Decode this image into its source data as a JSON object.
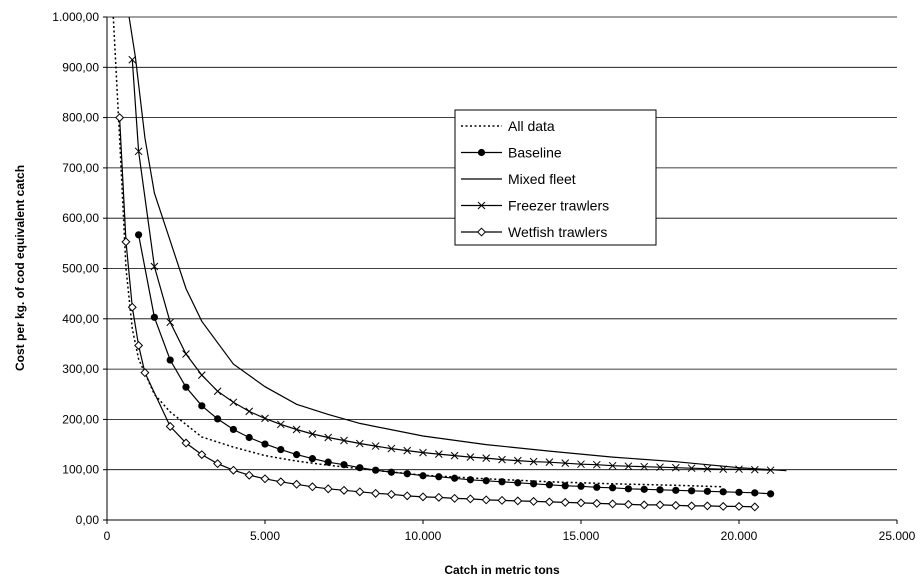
{
  "chart_data": {
    "type": "line",
    "title": "",
    "xlabel": "Catch in metric tons",
    "ylabel": "Cost per kg. of cod equivalent catch",
    "xlim": [
      0,
      25000
    ],
    "ylim": [
      0,
      1000
    ],
    "x_ticks": [
      "0",
      "5.000",
      "10.000",
      "15.000",
      "20.000",
      "25.000"
    ],
    "y_ticks": [
      "0,00",
      "100,00",
      "200,00",
      "300,00",
      "400,00",
      "500,00",
      "600,00",
      "700,00",
      "800,00",
      "900,00",
      "1.000,00"
    ],
    "grid": "horizontal",
    "legend_position": "center",
    "series": [
      {
        "name": "All data",
        "style": "dotted",
        "marker": "none",
        "color": "#000000",
        "x": [
          200,
          400,
          600,
          800,
          1000,
          1500,
          2000,
          3000,
          4000,
          5000,
          6000,
          7000,
          8000,
          10000,
          12000,
          14000,
          16000,
          18000,
          19500
        ],
        "y": [
          1000,
          760,
          500,
          380,
          320,
          250,
          215,
          165,
          145,
          128,
          117,
          109,
          102,
          89,
          82,
          76,
          72,
          69,
          66
        ]
      },
      {
        "name": "Baseline",
        "style": "solid",
        "marker": "circle-filled",
        "color": "#000000",
        "x": [
          1000,
          1500,
          2000,
          2500,
          3000,
          3500,
          4000,
          4500,
          5000,
          5500,
          6000,
          6500,
          7000,
          7500,
          8000,
          8500,
          9000,
          9500,
          10000,
          10500,
          11000,
          11500,
          12000,
          12500,
          13000,
          13500,
          14000,
          14500,
          15000,
          15500,
          16000,
          16500,
          17000,
          17500,
          18000,
          18500,
          19000,
          19500,
          20000,
          20500,
          21000
        ],
        "y": [
          567,
          403,
          318,
          264,
          227,
          201,
          180,
          164,
          151,
          140,
          130,
          122,
          115,
          110,
          104,
          99,
          95,
          92,
          88,
          86,
          83,
          80,
          78,
          76,
          74,
          72,
          70,
          68,
          67,
          65,
          64,
          62,
          61,
          60,
          59,
          58,
          57,
          56,
          55,
          54,
          52
        ]
      },
      {
        "name": "Mixed fleet",
        "style": "solid",
        "marker": "none",
        "color": "#000000",
        "x": [
          700,
          900,
          1200,
          1500,
          2000,
          2500,
          3000,
          4000,
          5000,
          6000,
          7000,
          8000,
          10000,
          12000,
          14000,
          16000,
          18000,
          20000,
          21500
        ],
        "y": [
          1000,
          920,
          760,
          650,
          555,
          460,
          395,
          310,
          265,
          230,
          210,
          192,
          167,
          150,
          137,
          125,
          116,
          104,
          98
        ]
      },
      {
        "name": "Freezer trawlers",
        "style": "solid",
        "marker": "x",
        "color": "#000000",
        "x": [
          800,
          1000,
          1500,
          2000,
          2500,
          3000,
          3500,
          4000,
          4500,
          5000,
          5500,
          6000,
          6500,
          7000,
          7500,
          8000,
          8500,
          9000,
          9500,
          10000,
          10500,
          11000,
          11500,
          12000,
          12500,
          13000,
          13500,
          14000,
          14500,
          15000,
          15500,
          16000,
          16500,
          17000,
          17500,
          18000,
          18500,
          19000,
          19500,
          20000,
          20500,
          21000
        ],
        "y": [
          915,
          733,
          504,
          393,
          330,
          288,
          256,
          234,
          216,
          202,
          190,
          180,
          171,
          164,
          158,
          152,
          147,
          142,
          138,
          134,
          131,
          128,
          125,
          123,
          120,
          118,
          116,
          115,
          113,
          111,
          110,
          108,
          107,
          106,
          105,
          104,
          103,
          102,
          101,
          101,
          100,
          99
        ]
      },
      {
        "name": "Wetfish trawlers",
        "style": "solid",
        "marker": "diamond-open",
        "color": "#000000",
        "x": [
          400,
          600,
          800,
          1000,
          1200,
          2000,
          2500,
          3000,
          3500,
          4000,
          4500,
          5000,
          5500,
          6000,
          6500,
          7000,
          7500,
          8000,
          8500,
          9000,
          9500,
          10000,
          10500,
          11000,
          11500,
          12000,
          12500,
          13000,
          13500,
          14000,
          14500,
          15000,
          15500,
          16000,
          16500,
          17000,
          17500,
          18000,
          18500,
          19000,
          19500,
          20000,
          20500
        ],
        "y": [
          800,
          553,
          423,
          347,
          293,
          186,
          153,
          130,
          112,
          99,
          89,
          82,
          76,
          71,
          66,
          62,
          59,
          56,
          53,
          51,
          48,
          46,
          45,
          43,
          42,
          40,
          39,
          38,
          37,
          36,
          35,
          34,
          33,
          32,
          31,
          30,
          30,
          29,
          28,
          28,
          27,
          27,
          26
        ]
      }
    ]
  }
}
